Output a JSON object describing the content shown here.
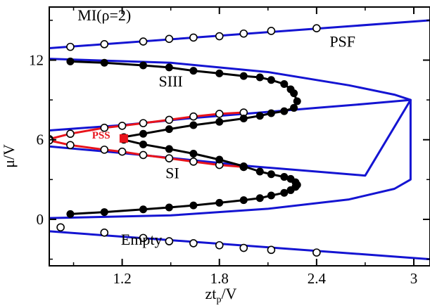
{
  "chart_data": {
    "type": "line",
    "xlabel": "zt",
    "xlabel_sub": "p",
    "xlabel_suffix": "/V",
    "ylabel": "μ/V",
    "xlim": [
      0.75,
      3.1
    ],
    "ylim": [
      -3.5,
      16
    ],
    "x_ticks": [
      1.2,
      1.8,
      2.4,
      3
    ],
    "x_tick_labels": [
      "1.2",
      "1.8",
      "2.4",
      "3"
    ],
    "y_ticks": [
      0,
      6,
      12
    ],
    "y_tick_labels": [
      "0",
      "6",
      "12"
    ],
    "colors": {
      "blue": "#1414d2",
      "red": "#e8141c",
      "black": "#000000"
    },
    "region_labels": [
      {
        "text": "MI(ρ=2)",
        "x": 1.09,
        "y": 15.0
      },
      {
        "text": "PSF",
        "x": 2.56,
        "y": 13.0
      },
      {
        "text": "SIII",
        "x": 1.5,
        "y": 10.0
      },
      {
        "text": "PSS",
        "x": 1.07,
        "y": 6.1,
        "color": "red"
      },
      {
        "text": "SI",
        "x": 1.51,
        "y": 3.1
      },
      {
        "text": "Empty",
        "x": 1.32,
        "y": -1.9
      }
    ],
    "series": [
      {
        "color": "blue",
        "marker": "open-circle",
        "x": [
          0.75,
          3.1
        ],
        "y": [
          12.9,
          15.0
        ],
        "marker_x": [
          0.88,
          1.09,
          1.33,
          1.49,
          1.64,
          1.8,
          1.95,
          2.12,
          2.4
        ],
        "marker_y": [
          13.0,
          13.2,
          13.4,
          13.6,
          13.7,
          13.8,
          14.0,
          14.2,
          14.4
        ]
      },
      {
        "color": "blue",
        "marker": "open-circle",
        "x": [
          0.75,
          3.1
        ],
        "y": [
          -0.9,
          -3.0
        ],
        "marker_x": [
          0.82,
          1.09,
          1.33,
          1.49,
          1.64,
          1.8,
          1.95,
          2.12,
          2.4
        ],
        "marker_y": [
          -0.6,
          -1.0,
          -1.4,
          -1.65,
          -1.8,
          -1.95,
          -2.15,
          -2.3,
          -2.5
        ]
      },
      {
        "color": "blue",
        "marker": "none",
        "x": [
          0.75,
          1.5,
          2.1,
          2.6,
          2.88,
          2.98,
          2.98,
          2.88,
          2.6,
          2.1,
          1.5,
          0.75
        ],
        "y": [
          12.1,
          11.8,
          11.1,
          10.1,
          9.4,
          9.0,
          3.0,
          2.3,
          1.5,
          0.8,
          0.3,
          0.1
        ]
      },
      {
        "color": "blue",
        "marker": "none",
        "x": [
          0.75,
          1.2,
          1.6,
          2.0,
          2.4,
          2.7,
          2.98,
          2.7,
          2.4,
          2.0,
          1.6,
          1.2,
          0.75
        ],
        "y": [
          6.7,
          7.1,
          7.6,
          8.0,
          8.4,
          8.7,
          9.0,
          3.3,
          3.6,
          4.0,
          4.5,
          5.0,
          5.5
        ]
      },
      {
        "color": "red",
        "marker": "open-circle",
        "x": [
          0.75,
          0.88,
          1.09,
          1.2,
          1.33,
          1.49,
          1.64,
          1.8,
          1.95
        ],
        "y": [
          6.05,
          6.45,
          6.9,
          7.05,
          7.25,
          7.5,
          7.75,
          7.95,
          8.05
        ]
      },
      {
        "color": "red",
        "marker": "open-circle",
        "x": [
          0.75,
          0.88,
          1.09,
          1.2,
          1.33,
          1.49,
          1.64,
          1.8,
          1.95
        ],
        "y": [
          5.95,
          5.6,
          5.25,
          5.1,
          4.85,
          4.6,
          4.35,
          4.1,
          3.95
        ]
      },
      {
        "color": "black",
        "marker": "filled-circle",
        "x": [
          0.88,
          1.09,
          1.33,
          1.49,
          1.64,
          1.8,
          1.95,
          2.05,
          2.12,
          2.2,
          2.24,
          2.26,
          2.28,
          2.26,
          2.2,
          2.12,
          2.05,
          1.95,
          1.8,
          1.64,
          1.49,
          1.33,
          1.21
        ],
        "y": [
          11.9,
          11.8,
          11.6,
          11.45,
          11.2,
          11.0,
          10.8,
          10.7,
          10.5,
          10.2,
          9.8,
          9.5,
          8.9,
          8.4,
          8.15,
          8.0,
          7.8,
          7.6,
          7.35,
          7.1,
          6.8,
          6.45,
          6.2
        ]
      },
      {
        "color": "black",
        "marker": "filled-circle",
        "x": [
          0.88,
          1.09,
          1.33,
          1.49,
          1.64,
          1.8,
          1.95,
          2.05,
          2.12,
          2.2,
          2.24,
          2.27,
          2.28,
          2.27,
          2.24,
          2.2,
          2.12,
          2.05,
          1.95,
          1.8,
          1.64,
          1.49,
          1.33,
          1.21
        ],
        "y": [
          0.4,
          0.55,
          0.75,
          0.9,
          1.05,
          1.25,
          1.45,
          1.6,
          1.8,
          2.0,
          2.2,
          2.45,
          2.6,
          2.8,
          3.05,
          3.2,
          3.4,
          3.6,
          4.0,
          4.5,
          4.95,
          5.3,
          5.65,
          6.0
        ]
      },
      {
        "color": "red",
        "marker": "filled-square",
        "x": [
          1.21
        ],
        "y": [
          6.1
        ]
      }
    ]
  }
}
